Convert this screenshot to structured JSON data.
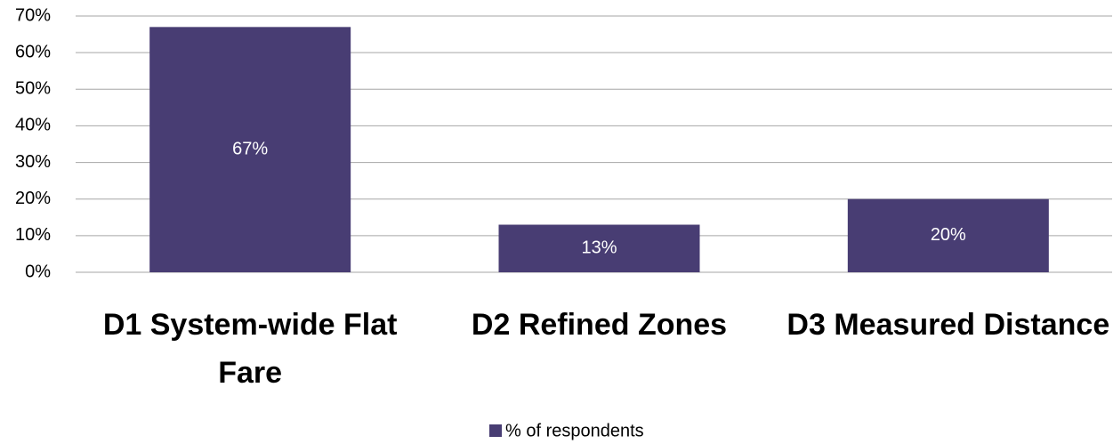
{
  "chart_data": {
    "type": "bar",
    "categories": [
      "D1 System-wide Flat Fare",
      "D2 Refined Zones",
      "D3 Measured Distance"
    ],
    "series": [
      {
        "name": "% of respondents",
        "color": "#483d73",
        "values": [
          67,
          13,
          20
        ],
        "value_labels": [
          "67%",
          "13%",
          "20%"
        ]
      }
    ],
    "ylim": [
      0,
      70
    ],
    "yticks": [
      {
        "value": 0,
        "label": "0%"
      },
      {
        "value": 10,
        "label": "10%"
      },
      {
        "value": 20,
        "label": "20%"
      },
      {
        "value": 30,
        "label": "30%"
      },
      {
        "value": 40,
        "label": "40%"
      },
      {
        "value": 50,
        "label": "50%"
      },
      {
        "value": 60,
        "label": "60%"
      },
      {
        "value": 70,
        "label": "70%"
      }
    ],
    "grid": true,
    "legend": "bottom"
  }
}
